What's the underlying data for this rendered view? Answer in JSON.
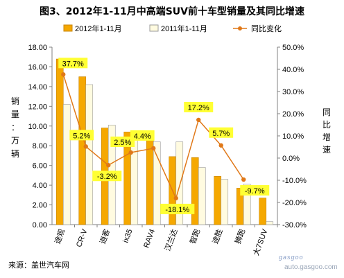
{
  "title": "图3、2012年1-11月中高端SUV前十车型销量及其同比增速",
  "source": "来源：盖世汽车网",
  "watermark": {
    "brand": "gasgoo",
    "url": "auto.gasgoo.com"
  },
  "colors": {
    "bar2012": "#f5a800",
    "bar2012_edge": "#c88500",
    "bar2011": "#fffbe0",
    "bar2011_edge": "#999999",
    "line": "#e07818",
    "label_bg": "#ffff33"
  },
  "chart_data": {
    "type": "bar",
    "categories": [
      "途观",
      "CR-V",
      "逍客",
      "ix35",
      "RAV4",
      "汉兰达",
      "智跑",
      "途胜",
      "狮跑",
      "大7SUV"
    ],
    "series": [
      {
        "name": "2012年1-11月",
        "values": [
          16.8,
          15.0,
          9.8,
          9.4,
          8.8,
          6.9,
          6.8,
          4.9,
          3.7,
          2.7
        ]
      },
      {
        "name": "2011年1-11月",
        "values": [
          12.2,
          14.2,
          10.1,
          9.2,
          8.4,
          8.4,
          5.8,
          4.6,
          4.1,
          0.3
        ]
      },
      {
        "name": "同比变化",
        "values": [
          37.7,
          5.2,
          -3.2,
          2.5,
          4.4,
          -18.1,
          17.2,
          5.7,
          -9.7,
          null
        ]
      }
    ],
    "labels": [
      "37.7%",
      "5.2%",
      "-3.2%",
      "2.5%",
      "4.4%",
      "-18.1%",
      "17.2%",
      "5.7%",
      "-9.7%"
    ],
    "ylabel": "销量：万辆",
    "y2label": "同比增速",
    "ylim": [
      0,
      18
    ],
    "yticks": [
      "0.00",
      "2.00",
      "4.00",
      "6.00",
      "8.00",
      "10.00",
      "12.00",
      "14.00",
      "16.00",
      "18.00"
    ],
    "y2lim": [
      -30,
      50
    ],
    "y2ticks": [
      "-30.0%",
      "-20.0%",
      "-10.0%",
      "0.0%",
      "10.0%",
      "20.0%",
      "30.0%",
      "40.0%",
      "50.0%"
    ],
    "grid": false,
    "legend": "top"
  }
}
